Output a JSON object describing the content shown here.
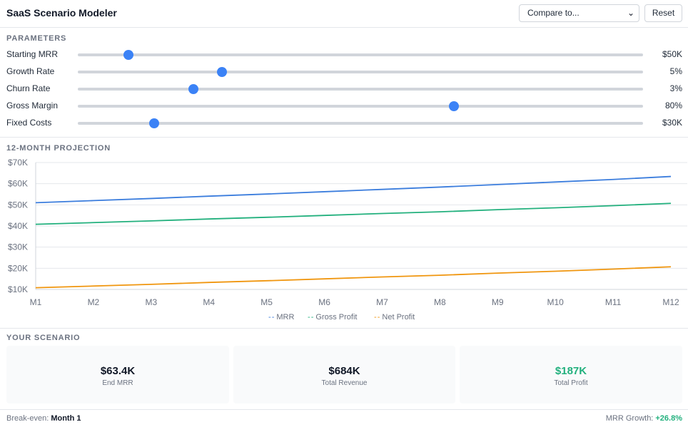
{
  "header": {
    "title": "SaaS Scenario Modeler",
    "compare_value": "Compare to...",
    "reset_label": "Reset"
  },
  "parameters": {
    "title": "PARAMETERS",
    "items": [
      {
        "label": "Starting MRR",
        "value": "$50K",
        "level": 0.09
      },
      {
        "label": "Growth Rate",
        "value": "5%",
        "level": 0.255
      },
      {
        "label": "Churn Rate",
        "value": "3%",
        "level": 0.205
      },
      {
        "label": "Gross Margin",
        "value": "80%",
        "level": 0.665
      },
      {
        "label": "Fixed Costs",
        "value": "$30K",
        "level": 0.135
      }
    ]
  },
  "projection": {
    "title": "12-MONTH PROJECTION"
  },
  "chart_data": {
    "type": "line",
    "x": [
      "M1",
      "M2",
      "M3",
      "M4",
      "M5",
      "M6",
      "M7",
      "M8",
      "M9",
      "M10",
      "M11",
      "M12"
    ],
    "y_ticks": [
      "$70K",
      "$60K",
      "$50K",
      "$40K",
      "$30K",
      "$20K",
      "$10K"
    ],
    "ylim": [
      10,
      70
    ],
    "series": [
      {
        "name": "MRR",
        "color": "#3b7ddd",
        "values": [
          51.0,
          52.0,
          53.0,
          54.1,
          55.1,
          56.2,
          57.3,
          58.4,
          59.6,
          60.8,
          62.0,
          63.4
        ]
      },
      {
        "name": "Gross Profit",
        "color": "#22b07d",
        "values": [
          40.8,
          41.6,
          42.4,
          43.3,
          44.1,
          45.0,
          45.9,
          46.7,
          47.7,
          48.6,
          49.6,
          50.7
        ]
      },
      {
        "name": "Net Profit",
        "color": "#f0960f",
        "values": [
          10.8,
          11.6,
          12.4,
          13.3,
          14.1,
          15.0,
          15.9,
          16.7,
          17.7,
          18.6,
          19.6,
          20.7
        ]
      }
    ],
    "grid": true,
    "legend": "bottom-center"
  },
  "scenario": {
    "title": "YOUR SCENARIO",
    "cards": [
      {
        "value": "$63.4K",
        "label": "End MRR",
        "color": "#111827"
      },
      {
        "value": "$684K",
        "label": "Total Revenue",
        "color": "#111827"
      },
      {
        "value": "$187K",
        "label": "Total Profit",
        "color": "#22b07d"
      }
    ]
  },
  "footer": {
    "break_even_label": "Break-even:",
    "break_even_value": "Month 1",
    "mrr_growth_label": "MRR Growth:",
    "mrr_growth_value": "+26.8%",
    "mrr_growth_color": "#22b07d"
  }
}
